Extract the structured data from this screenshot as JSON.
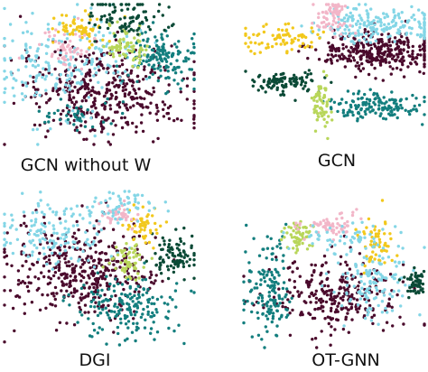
{
  "colors": {
    "maroon": "#4a0a2c",
    "teal": "#137e7e",
    "dark_green": "#0b4a36",
    "light_blue": "#84d6e6",
    "yellow": "#f2c81c",
    "pink": "#f2b6c8",
    "lime": "#b8d65a"
  },
  "chart_data": [
    {
      "type": "scatter",
      "title": "GCN without W",
      "clusters": [
        {
          "color_key": "maroon",
          "cx": 0.05,
          "cy": -0.25,
          "sx": 0.45,
          "sy": 0.35,
          "n": 420
        },
        {
          "color_key": "light_blue",
          "cx": -0.55,
          "cy": 0.05,
          "sx": 0.3,
          "sy": 0.4,
          "n": 150
        },
        {
          "color_key": "light_blue",
          "cx": 0.05,
          "cy": 0.3,
          "sx": 0.25,
          "sy": 0.2,
          "n": 60
        },
        {
          "color_key": "teal",
          "cx": 0.65,
          "cy": 0.25,
          "sx": 0.2,
          "sy": 0.2,
          "n": 150
        },
        {
          "color_key": "lime",
          "cx": 0.3,
          "cy": 0.4,
          "sx": 0.12,
          "sy": 0.12,
          "n": 70
        },
        {
          "color_key": "yellow",
          "cx": -0.2,
          "cy": 0.65,
          "sx": 0.15,
          "sy": 0.12,
          "n": 60
        },
        {
          "color_key": "dark_green",
          "cx": 0.3,
          "cy": 0.8,
          "sx": 0.2,
          "sy": 0.15,
          "n": 90
        },
        {
          "color_key": "pink",
          "cx": -0.35,
          "cy": 0.4,
          "sx": 0.15,
          "sy": 0.15,
          "n": 50
        },
        {
          "color_key": "teal",
          "cx": -0.2,
          "cy": -0.6,
          "sx": 0.2,
          "sy": 0.12,
          "n": 40
        }
      ]
    },
    {
      "type": "scatter",
      "title": "GCN",
      "clusters": [
        {
          "color_key": "maroon",
          "cx": 0.5,
          "cy": 0.3,
          "sx": 0.35,
          "sy": 0.15,
          "n": 320
        },
        {
          "color_key": "light_blue",
          "cx": 0.5,
          "cy": 0.7,
          "sx": 0.35,
          "sy": 0.12,
          "n": 200
        },
        {
          "color_key": "teal",
          "cx": 0.45,
          "cy": -0.5,
          "sx": 0.25,
          "sy": 0.1,
          "n": 150
        },
        {
          "color_key": "yellow",
          "cx": -0.6,
          "cy": 0.5,
          "sx": 0.25,
          "sy": 0.1,
          "n": 80
        },
        {
          "color_key": "dark_green",
          "cx": -0.55,
          "cy": -0.15,
          "sx": 0.2,
          "sy": 0.08,
          "n": 100
        },
        {
          "color_key": "lime",
          "cx": -0.15,
          "cy": -0.45,
          "sx": 0.06,
          "sy": 0.2,
          "n": 60
        },
        {
          "color_key": "pink",
          "cx": -0.05,
          "cy": 0.75,
          "sx": 0.1,
          "sy": 0.1,
          "n": 40
        },
        {
          "color_key": "pink",
          "cx": 0.0,
          "cy": 0.95,
          "sx": 0.05,
          "sy": 0.05,
          "n": 30
        }
      ]
    },
    {
      "type": "scatter",
      "title": "DGI",
      "clusters": [
        {
          "color_key": "maroon",
          "cx": -0.2,
          "cy": -0.05,
          "sx": 0.4,
          "sy": 0.3,
          "n": 420
        },
        {
          "color_key": "light_blue",
          "cx": -0.45,
          "cy": 0.45,
          "sx": 0.3,
          "sy": 0.2,
          "n": 150
        },
        {
          "color_key": "teal",
          "cx": 0.3,
          "cy": -0.5,
          "sx": 0.25,
          "sy": 0.2,
          "n": 180
        },
        {
          "color_key": "dark_green",
          "cx": 0.8,
          "cy": 0.15,
          "sx": 0.12,
          "sy": 0.15,
          "n": 90
        },
        {
          "color_key": "lime",
          "cx": 0.3,
          "cy": 0.1,
          "sx": 0.1,
          "sy": 0.12,
          "n": 60
        },
        {
          "color_key": "yellow",
          "cx": 0.45,
          "cy": 0.55,
          "sx": 0.1,
          "sy": 0.12,
          "n": 50
        },
        {
          "color_key": "pink",
          "cx": 0.2,
          "cy": 0.7,
          "sx": 0.12,
          "sy": 0.08,
          "n": 40
        },
        {
          "color_key": "light_blue",
          "cx": 0.3,
          "cy": 0.8,
          "sx": 0.2,
          "sy": 0.1,
          "n": 50
        }
      ]
    },
    {
      "type": "scatter",
      "title": "OT-GNN",
      "clusters": [
        {
          "color_key": "maroon",
          "cx": 0.0,
          "cy": -0.3,
          "sx": 0.35,
          "sy": 0.25,
          "n": 280
        },
        {
          "color_key": "teal",
          "cx": -0.75,
          "cy": -0.2,
          "sx": 0.12,
          "sy": 0.35,
          "n": 150
        },
        {
          "color_key": "lime",
          "cx": -0.4,
          "cy": 0.5,
          "sx": 0.1,
          "sy": 0.1,
          "n": 60
        },
        {
          "color_key": "pink",
          "cx": -0.05,
          "cy": 0.65,
          "sx": 0.15,
          "sy": 0.08,
          "n": 60
        },
        {
          "color_key": "yellow",
          "cx": 0.45,
          "cy": 0.45,
          "sx": 0.1,
          "sy": 0.18,
          "n": 60
        },
        {
          "color_key": "light_blue",
          "cx": 0.45,
          "cy": -0.1,
          "sx": 0.2,
          "sy": 0.25,
          "n": 140
        },
        {
          "color_key": "dark_green",
          "cx": 0.9,
          "cy": -0.1,
          "sx": 0.06,
          "sy": 0.1,
          "n": 50
        },
        {
          "color_key": "light_blue",
          "cx": 0.1,
          "cy": 0.5,
          "sx": 0.25,
          "sy": 0.1,
          "n": 50
        }
      ]
    }
  ]
}
